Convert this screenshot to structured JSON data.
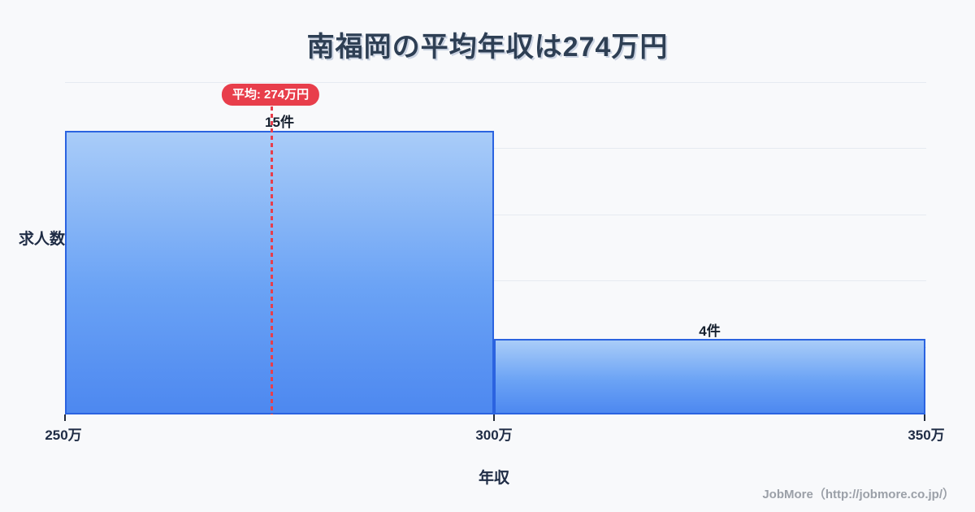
{
  "page": {
    "background": "#f8f9fb"
  },
  "chart_data": {
    "type": "bar",
    "title": "南福岡の平均年収は274万円",
    "xlabel": "年収",
    "ylabel": "求人数",
    "categories": [
      "250万〜300万",
      "300万〜350万"
    ],
    "values": [
      15,
      4
    ],
    "bar_labels": [
      "15件",
      "4件"
    ],
    "x_ticks": [
      "250万",
      "300万",
      "350万"
    ],
    "x_range": [
      250,
      350
    ],
    "average": 274,
    "average_label": "平均: 274万円",
    "grid": true,
    "gridline_count": 5,
    "legend": "none",
    "colors": {
      "bar_fill_top": "#a9ccf8",
      "bar_fill_bottom": "#4d88f0",
      "bar_border": "#2b63e0",
      "average_line": "#e83e4b",
      "badge_bg": "#e83e4b",
      "badge_text": "#ffffff",
      "title_text": "#2e3f54",
      "axis_text": "#1f2c45",
      "gridline": "#e6eaf1",
      "background": "#f8f9fb"
    }
  },
  "footer": {
    "credit": "JobMore（http://jobmore.co.jp/）"
  }
}
